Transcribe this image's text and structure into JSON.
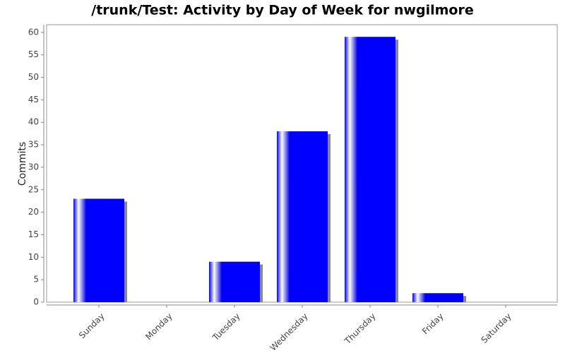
{
  "chart_data": {
    "type": "bar",
    "title": "/trunk/Test: Activity by Day of Week for nwgilmore",
    "y_label": "Commits",
    "categories": [
      "Sunday",
      "Monday",
      "Tuesday",
      "Wednesday",
      "Thursday",
      "Friday",
      "Saturday"
    ],
    "values": [
      23,
      0,
      9,
      38,
      59,
      2,
      0
    ],
    "color": "#0000ff",
    "ylim": [
      0,
      61.7
    ],
    "yticks": [
      0,
      5,
      10,
      15,
      20,
      25,
      30,
      35,
      40,
      45,
      50,
      55,
      60
    ],
    "grid": false
  }
}
